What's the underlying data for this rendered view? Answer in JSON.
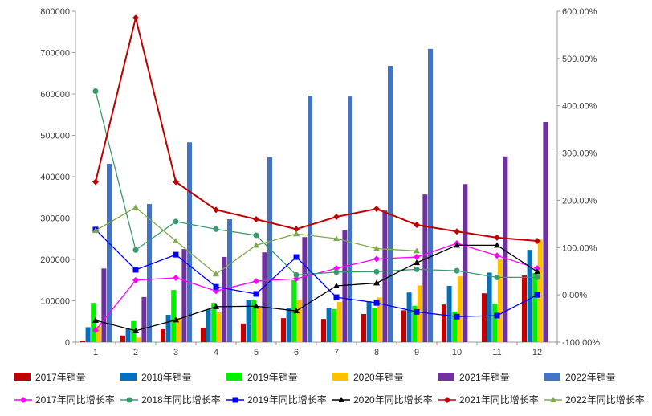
{
  "chart_data": {
    "type": "bar+line",
    "categories": [
      "1",
      "2",
      "3",
      "4",
      "5",
      "6",
      "7",
      "8",
      "9",
      "10",
      "11",
      "12"
    ],
    "left_axis": {
      "ylim": [
        0,
        800000
      ],
      "ticks": [
        "0",
        "100000",
        "200000",
        "300000",
        "400000",
        "500000",
        "600000",
        "700000",
        "800000"
      ]
    },
    "right_axis": {
      "ylim": [
        -100,
        600
      ],
      "unit": "%",
      "ticks": [
        "-100.00%",
        "0.00%",
        "100.00%",
        "200.00%",
        "300.00%",
        "400.00%",
        "500.00%",
        "600.00%"
      ]
    },
    "grid": false,
    "legend_position": "bottom",
    "bar_series": [
      {
        "name": "2017年销量",
        "color": "#C00000",
        "values": [
          4000,
          16000,
          31000,
          35000,
          45000,
          58000,
          56000,
          68000,
          77000,
          91000,
          118000,
          161000
        ]
      },
      {
        "name": "2018年销量",
        "color": "#0070C0",
        "values": [
          36000,
          32000,
          66000,
          80000,
          101000,
          83000,
          83000,
          99000,
          120000,
          136000,
          168000,
          223000
        ]
      },
      {
        "name": "2019年销量",
        "color": "#00F000",
        "values": [
          95000,
          51000,
          126000,
          95000,
          103000,
          150000,
          80000,
          83000,
          88000,
          74000,
          93000,
          167000
        ]
      },
      {
        "name": "2020年销量",
        "color": "#FFC000",
        "values": [
          38000,
          11000,
          58000,
          72000,
          82000,
          103000,
          97000,
          108000,
          137000,
          159000,
          200000,
          248000
        ]
      },
      {
        "name": "2021年销量",
        "color": "#7030A0",
        "values": [
          178000,
          109000,
          225000,
          206000,
          217000,
          254000,
          270000,
          318000,
          357000,
          382000,
          449000,
          532000
        ]
      },
      {
        "name": "2022年销量",
        "color": "#4472C4",
        "values": [
          431000,
          334000,
          483000,
          297000,
          447000,
          596000,
          594000,
          668000,
          709000,
          null,
          null,
          null
        ]
      }
    ],
    "line_series": [
      {
        "name": "2017年同比增长率",
        "color": "#FF00FF",
        "marker": "diamond",
        "values": [
          -75,
          31,
          36,
          8,
          29,
          34,
          56,
          76,
          80,
          109,
          83,
          56
        ]
      },
      {
        "name": "2018年同比增长率",
        "color": "#3A9A6E",
        "marker": "circle",
        "values": [
          431,
          95,
          155,
          139,
          126,
          42,
          48,
          49,
          54,
          51,
          37,
          37
        ]
      },
      {
        "name": "2019年同比增长率",
        "color": "#0000FF",
        "marker": "square",
        "values": [
          138,
          53,
          85,
          17,
          2,
          80,
          -5,
          -17,
          -36,
          -46,
          -44,
          0
        ]
      },
      {
        "name": "2020年同比增长率",
        "color": "#000000",
        "marker": "triangle",
        "values": [
          -54,
          -76,
          -53,
          -25,
          -24,
          -34,
          19,
          25,
          68,
          105,
          105,
          49
        ]
      },
      {
        "name": "2021年同比增长率",
        "color": "#C00000",
        "marker": "diamond",
        "values": [
          239,
          586,
          239,
          180,
          160,
          139,
          165,
          182,
          148,
          134,
          121,
          114
        ]
      },
      {
        "name": "2022年同比增长率",
        "color": "#7FAA4A",
        "marker": "triangle",
        "values": [
          136,
          185,
          114,
          44,
          105,
          129,
          119,
          98,
          93,
          null,
          null,
          null
        ]
      }
    ]
  }
}
